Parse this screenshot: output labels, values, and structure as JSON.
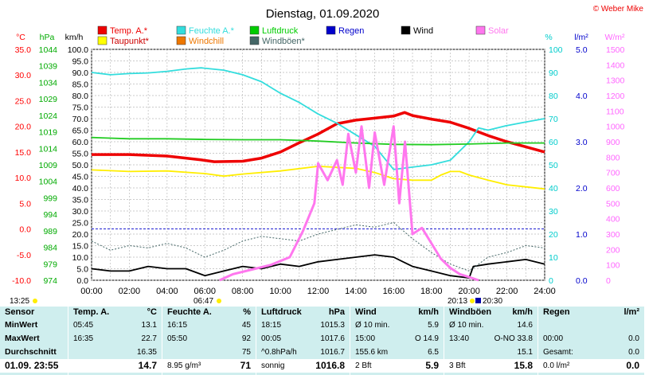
{
  "title": "Dienstag, 01.09.2020",
  "copyright": "© Weber Mike",
  "chart_data": {
    "type": "line",
    "x_ticks": [
      "00:00",
      "02:00",
      "04:00",
      "06:00",
      "08:00",
      "10:00",
      "12:00",
      "14:00",
      "16:00",
      "18:00",
      "20:00",
      "22:00",
      "24:00"
    ],
    "axes": {
      "temp": {
        "unit": "°C",
        "color": "#ff0000",
        "ticks": [
          "35.0",
          "30.0",
          "25.0",
          "20.0",
          "15.0",
          "10.0",
          "5.0",
          "0.0",
          "-5.0",
          "-10.0"
        ]
      },
      "pressure": {
        "unit": "hPa",
        "color": "#00aa00",
        "ticks": [
          "1044",
          "1039",
          "1034",
          "1029",
          "1024",
          "1019",
          "1014",
          "1009",
          "1004",
          "999",
          "994",
          "989",
          "984",
          "979",
          "974"
        ]
      },
      "wind": {
        "unit": "km/h",
        "color": "#000000",
        "ticks": [
          "100.0",
          "95.0",
          "90.0",
          "85.0",
          "80.0",
          "75.0",
          "70.0",
          "65.0",
          "60.0",
          "55.0",
          "50.0",
          "45.0",
          "40.0",
          "35.0",
          "30.0",
          "25.0",
          "20.0",
          "15.0",
          "10.0",
          "5.0",
          "0.0"
        ]
      },
      "humidity": {
        "unit": "%",
        "color": "#00cccc",
        "ticks": [
          "100",
          "90",
          "80",
          "70",
          "60",
          "50",
          "40",
          "30",
          "20",
          "10",
          "0"
        ]
      },
      "rain": {
        "unit": "l/m²",
        "color": "#0000cc",
        "ticks": [
          "5.0",
          "4.0",
          "3.0",
          "2.0",
          "1.0",
          "0.0"
        ]
      },
      "solar": {
        "unit": "W/m²",
        "color": "#ff66ff",
        "ticks": [
          "1500",
          "1400",
          "1300",
          "1200",
          "1100",
          "1000",
          "900",
          "800",
          "700",
          "600",
          "500",
          "400",
          "300",
          "200",
          "100",
          "0"
        ]
      }
    },
    "legend": [
      {
        "name": "Temp. A.*",
        "color": "#ee0000"
      },
      {
        "name": "Feuchte A.*",
        "color": "#33dddd"
      },
      {
        "name": "Luftdruck",
        "color": "#00cc00"
      },
      {
        "name": "Regen",
        "color": "#0000cc"
      },
      {
        "name": "Wind",
        "color": "#000000"
      },
      {
        "name": "Solar",
        "color": "#ff77ee"
      },
      {
        "name": "Taupunkt*",
        "color": "#ffff00"
      },
      {
        "name": "Windchill",
        "color": "#ee7700"
      },
      {
        "name": "Windböen*",
        "color": "#446666"
      }
    ],
    "series": [
      {
        "name": "Temp. A.*",
        "axis": "temp",
        "color": "#ee0000",
        "x": [
          0,
          2,
          4,
          5.75,
          6.5,
          8,
          9,
          10,
          11,
          12,
          13,
          14,
          15,
          16,
          16.58,
          17,
          18,
          19,
          20,
          21,
          22,
          23,
          24
        ],
        "y": [
          14.5,
          14.5,
          14.2,
          13.5,
          13.1,
          13.2,
          13.8,
          15,
          16.8,
          18.5,
          20.5,
          21.2,
          21.6,
          22,
          22.7,
          22.1,
          21.4,
          20.8,
          19.6,
          18.2,
          17,
          16,
          15
        ]
      },
      {
        "name": "Taupunkt*",
        "axis": "temp",
        "color": "#ffee00",
        "x": [
          0,
          2,
          4,
          6,
          7,
          8,
          10,
          12,
          13,
          14,
          15,
          16,
          17,
          18,
          18.5,
          19,
          19.5,
          20,
          21,
          22,
          23,
          24
        ],
        "y": [
          11.5,
          11.2,
          11.3,
          10.8,
          10.3,
          10.7,
          11.3,
          12.2,
          12.0,
          11.8,
          11.0,
          9.8,
          9.5,
          9.5,
          10.5,
          11.2,
          11.2,
          10.5,
          9.5,
          8.6,
          8.2,
          7.8
        ]
      },
      {
        "name": "Feuchte A.*",
        "axis": "humidity",
        "color": "#33dddd",
        "x": [
          0,
          1,
          2,
          3,
          4,
          5,
          5.8,
          7,
          8,
          9,
          10,
          11,
          12,
          13,
          14,
          15,
          16,
          17,
          18,
          19,
          20,
          20.5,
          21,
          22,
          23,
          24
        ],
        "y": [
          90,
          89,
          89.5,
          89.8,
          90.5,
          91.5,
          92,
          91,
          89,
          86,
          81,
          77,
          72,
          68,
          63,
          58,
          48,
          49,
          50,
          52,
          60,
          66,
          65,
          67,
          68.5,
          70
        ]
      },
      {
        "name": "Luftdruck",
        "axis": "pressure",
        "color": "#22cc22",
        "x": [
          0,
          2,
          4,
          6,
          8,
          10,
          12,
          14,
          16,
          18,
          20,
          22,
          24
        ],
        "y": [
          1017.6,
          1017.2,
          1017.2,
          1017.0,
          1016.9,
          1016.9,
          1016.5,
          1015.9,
          1015.5,
          1015.4,
          1015.6,
          1015.9,
          1015.9
        ]
      },
      {
        "name": "Wind",
        "axis": "wind",
        "color": "#000000",
        "x": [
          0,
          1,
          2,
          3,
          4,
          5,
          6,
          7,
          8,
          9,
          10,
          11,
          12,
          13,
          14,
          15,
          16,
          17,
          18,
          19,
          20,
          20.22,
          21,
          22,
          23,
          24
        ],
        "y": [
          5,
          4,
          4,
          6,
          5,
          5,
          2,
          4,
          6,
          5,
          7,
          6,
          8,
          9,
          10,
          11,
          10,
          6,
          4,
          2,
          1,
          6,
          7,
          8,
          9,
          7
        ]
      },
      {
        "name": "Windböen*",
        "axis": "wind",
        "color": "#446666",
        "x": [
          0,
          1,
          2,
          3,
          4,
          5,
          6,
          7,
          8,
          9,
          10,
          11,
          12,
          13,
          14,
          15,
          16,
          17,
          18,
          19,
          20,
          21,
          22,
          23,
          24
        ],
        "y": [
          17,
          13,
          15,
          14,
          16,
          14,
          10,
          13,
          17,
          19,
          18,
          17,
          20,
          22,
          24,
          23,
          25,
          18,
          12,
          7,
          4,
          10,
          12,
          15,
          14
        ]
      },
      {
        "name": "Solar",
        "axis": "solar",
        "color": "#ff77ee",
        "x": [
          6.78,
          7.5,
          8.5,
          9.5,
          10.5,
          11.2,
          11.8,
          12,
          12.5,
          13,
          13.3,
          13.6,
          14,
          14.3,
          14.7,
          15,
          15.5,
          16,
          16.3,
          16.6,
          17,
          17.5,
          18,
          18.5,
          19,
          19.5,
          20,
          20.5
        ],
        "y": [
          0,
          40,
          70,
          100,
          150,
          320,
          500,
          760,
          650,
          780,
          620,
          950,
          700,
          1000,
          600,
          960,
          620,
          1000,
          500,
          900,
          300,
          340,
          240,
          140,
          80,
          40,
          20,
          0
        ]
      }
    ]
  },
  "table": {
    "sunrise": "06:47",
    "sunset": "20:13",
    "night_start": "13:25",
    "night_end": "20:30",
    "columns": [
      {
        "header": "Sensor",
        "rows": [
          "MinWert",
          "MaxWert",
          "Durchschnitt",
          "01.09. 23:55"
        ]
      },
      {
        "header": "Temp. A.",
        "unit": "°C",
        "rows": [
          [
            "05:45",
            "13.1"
          ],
          [
            "16:35",
            "22.7"
          ],
          [
            "",
            "16.35"
          ],
          [
            "",
            "14.7"
          ]
        ]
      },
      {
        "header": "Feuchte A.",
        "unit": "%",
        "rows": [
          [
            "16:15",
            "45"
          ],
          [
            "05:50",
            "92"
          ],
          [
            "",
            "75"
          ],
          [
            "8.95 g/m³",
            "71"
          ]
        ]
      },
      {
        "header": "Luftdruck",
        "unit": "hPa",
        "rows": [
          [
            "18:15",
            "1015.3"
          ],
          [
            "00:05",
            "1017.6"
          ],
          [
            "^0.8hPa/h",
            "1016.7"
          ],
          [
            "sonnig",
            "1016.8"
          ]
        ]
      },
      {
        "header": "Wind",
        "unit": "km/h",
        "rows": [
          [
            "Ø 10 min.",
            "5.9"
          ],
          [
            "15:00",
            "O 14.9"
          ],
          [
            "155.6 km",
            "6.5"
          ],
          [
            "2 Bft",
            "5.9"
          ]
        ]
      },
      {
        "header": "Windböen",
        "unit": "km/h",
        "rows": [
          [
            "Ø 10 min.",
            "14.6"
          ],
          [
            "13:40",
            "O-NO 33.8"
          ],
          [
            "",
            "15.1"
          ],
          [
            "3 Bft",
            "15.8"
          ]
        ]
      },
      {
        "header": "Regen",
        "unit": "l/m²",
        "rows": [
          [
            "",
            ""
          ],
          [
            "00:00",
            "0.0"
          ],
          [
            "Gesamt:",
            "0.0"
          ],
          [
            "0.0 l/m²",
            "0.0"
          ]
        ]
      }
    ]
  }
}
